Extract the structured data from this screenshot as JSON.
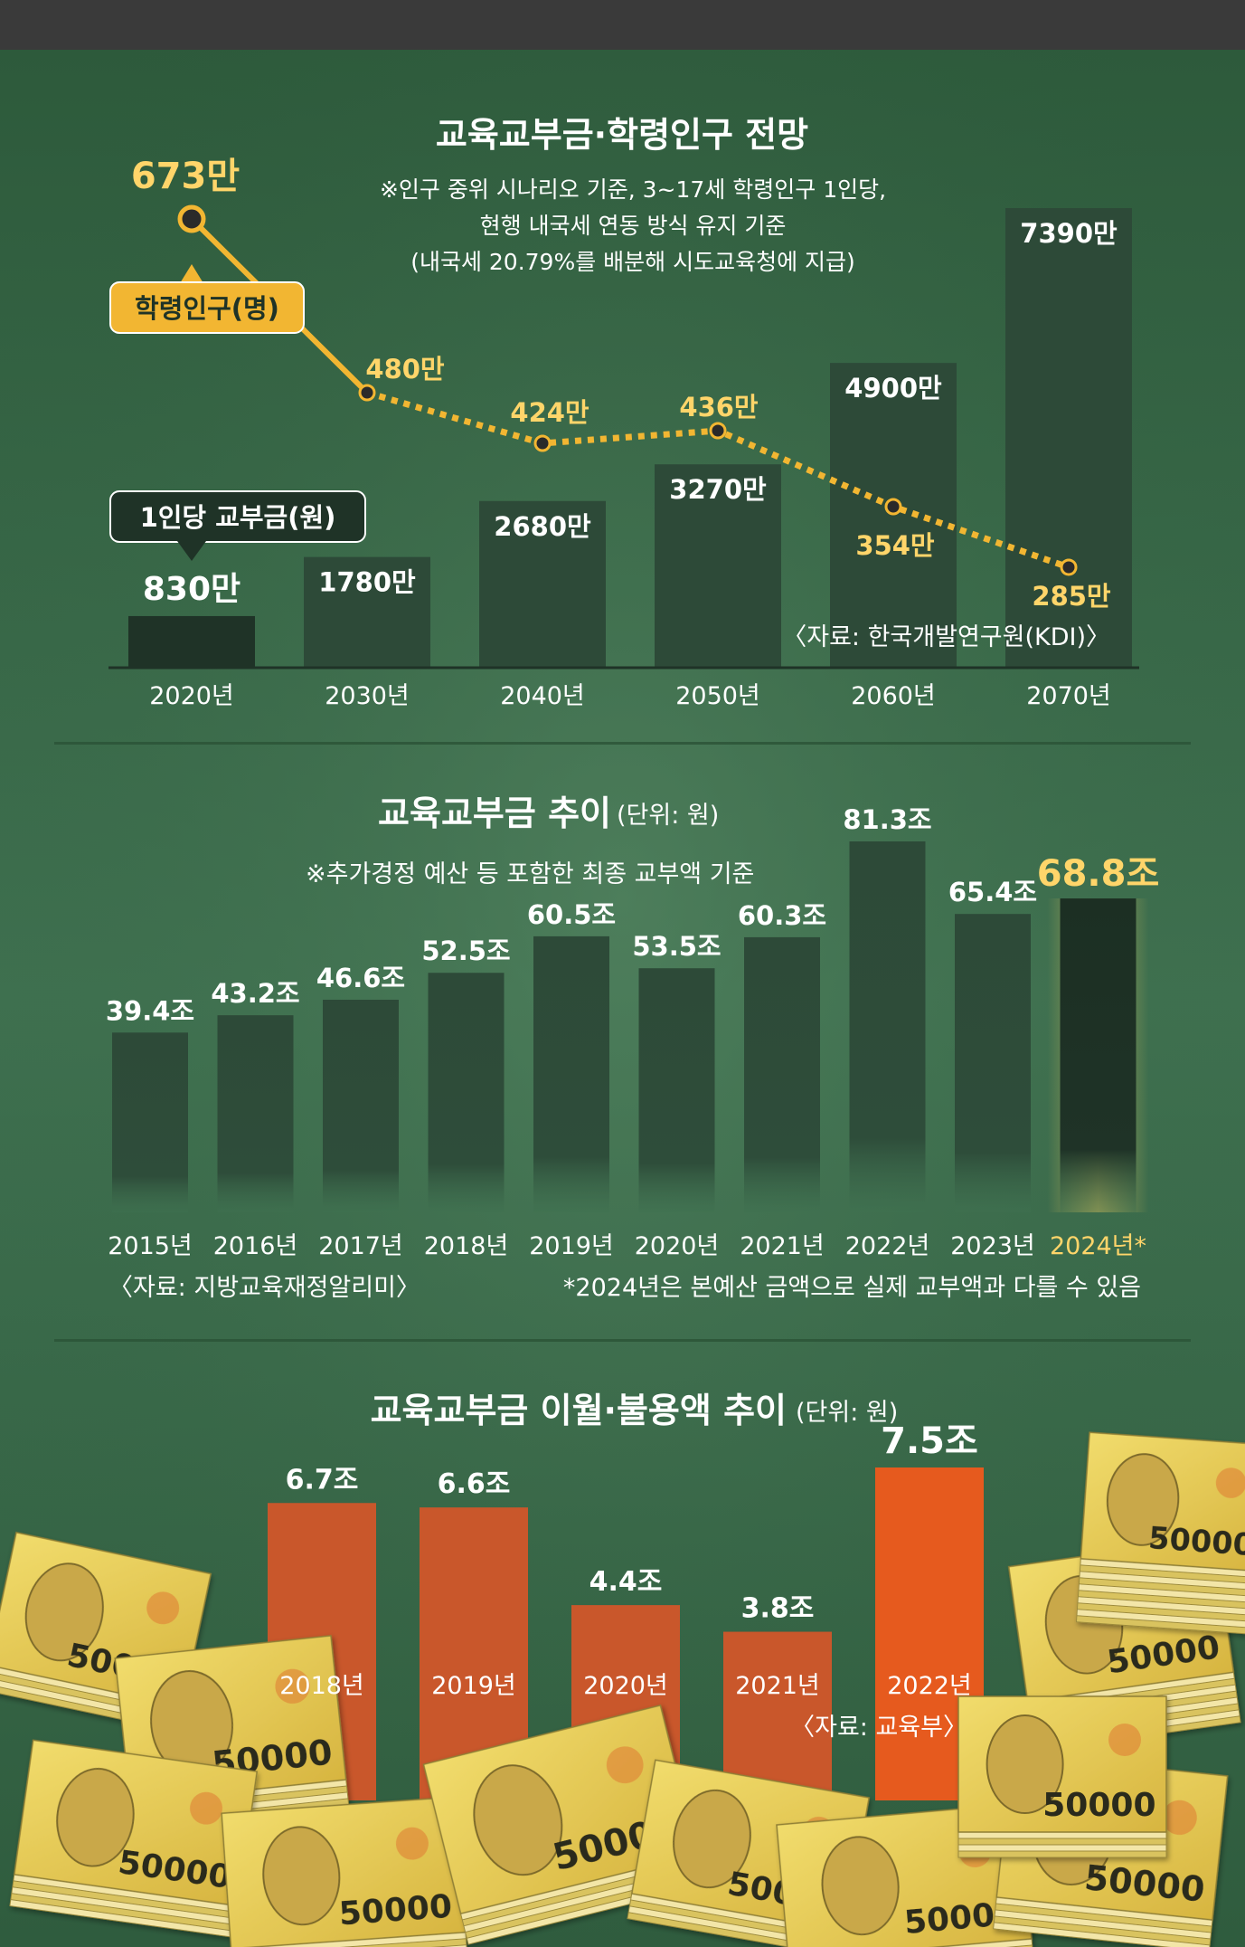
{
  "chart_data": [
    {
      "type": "bar",
      "title": "교육교부금·학령인구 전망",
      "notes": [
        "※인구 중위 시나리오 기준, 3~17세 학령인구 1인당,",
        "현행 내국세 연동 방식 유지 기준",
        "(내국세 20.79%를 배분해 시도교육청에 지급)"
      ],
      "categories": [
        "2020년",
        "2030년",
        "2040년",
        "2050년",
        "2060년",
        "2070년"
      ],
      "series": [
        {
          "name": "1인당 교부금(원)",
          "type": "bar",
          "values": [
            830,
            1780,
            2680,
            3270,
            4900,
            7390
          ],
          "labels": [
            "830만",
            "1780만",
            "2680만",
            "3270만",
            "4900만",
            "7390만"
          ]
        },
        {
          "name": "학령인구(명)",
          "type": "line",
          "values": [
            673,
            480,
            424,
            436,
            354,
            285
          ],
          "labels": [
            "673만",
            "480만",
            "424만",
            "436만",
            "354만",
            "285만"
          ]
        }
      ],
      "source": "〈자료: 한국개발연구원(KDI)〉"
    },
    {
      "type": "bar",
      "title": "교육교부금 추이",
      "unit": "(단위: 원)",
      "note": "※추가경정 예산 등 포함한 최종 교부액 기준",
      "categories": [
        "2015년",
        "2016년",
        "2017년",
        "2018년",
        "2019년",
        "2020년",
        "2021년",
        "2022년",
        "2023년",
        "2024년*"
      ],
      "values": [
        39.4,
        43.2,
        46.6,
        52.5,
        60.5,
        53.5,
        60.3,
        81.3,
        65.4,
        68.8
      ],
      "labels": [
        "39.4조",
        "43.2조",
        "46.6조",
        "52.5조",
        "60.5조",
        "53.5조",
        "60.3조",
        "81.3조",
        "65.4조",
        "68.8조"
      ],
      "source": "〈자료: 지방교육재정알리미〉",
      "footnote": "*2024년은 본예산 금액으로 실제 교부액과 다를 수 있음"
    },
    {
      "type": "bar",
      "title": "교육교부금 이월·불용액 추이",
      "unit": "(단위: 원)",
      "categories": [
        "2018년",
        "2019년",
        "2020년",
        "2021년",
        "2022년"
      ],
      "values": [
        6.7,
        6.6,
        4.4,
        3.8,
        7.5
      ],
      "labels": [
        "6.7조",
        "6.6조",
        "4.4조",
        "3.8조",
        "7.5조"
      ],
      "source": "〈자료: 교육부〉"
    }
  ],
  "colors": {
    "background_green": "#3d6e4c",
    "bar_dark": "#2d4a38",
    "bar_darkest": "#1f3327",
    "accent_yellow": "#f2b632",
    "label_yellow": "#ffd56a",
    "bar_orange": "#c9572b",
    "bar_orange_highlight": "#e65a1e",
    "banknote_yellow": "#e9cf52"
  },
  "banknote_text": "50000"
}
